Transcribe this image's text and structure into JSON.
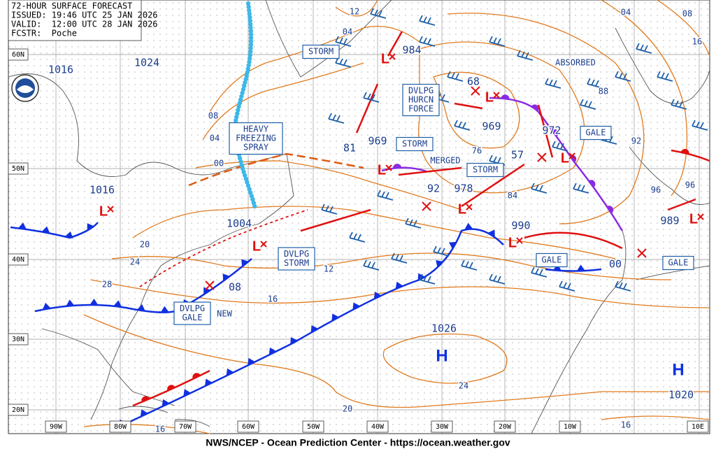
{
  "header": {
    "title": "72-HOUR SURFACE FORECAST",
    "issued": "ISSUED: 19:46 UTC 25 JAN 2026",
    "valid": "VALID:  12:00 UTC 28 JAN 2026",
    "forecaster": "FCSTR:  Poche"
  },
  "latitude_labels": [
    "60N",
    "50N",
    "40N",
    "30N",
    "20N"
  ],
  "longitude_labels": [
    "90W",
    "80W",
    "70W",
    "60W",
    "50W",
    "40W",
    "30W",
    "20W",
    "10W",
    "10E"
  ],
  "pressure_labels": [
    "984",
    "1016",
    "1024",
    "1016",
    "1004",
    "969",
    "969",
    "972",
    "978",
    "990",
    "989",
    "1026",
    "1020",
    "81",
    "92",
    "57",
    "68",
    "00",
    "08"
  ],
  "isobar_labels": [
    "12",
    "04",
    "08",
    "04",
    "00",
    "20",
    "24",
    "28",
    "16",
    "12",
    "20",
    "24",
    "16",
    "16",
    "76",
    "84",
    "88",
    "92",
    "96",
    "96",
    "04",
    "08",
    "16"
  ],
  "boxed_labels": [
    [
      "STORM"
    ],
    [
      "HEAVY",
      "FREEZING",
      "SPRAY"
    ],
    [
      "DVLPG",
      "HURCN",
      "FORCE"
    ],
    [
      "STORM"
    ],
    [
      "STORM"
    ],
    [
      "GALE"
    ],
    [
      "DVLPG",
      "STORM"
    ],
    [
      "DVLPG",
      "GALE"
    ],
    [
      "GALE"
    ],
    [
      "GALE"
    ]
  ],
  "plain_labels": [
    "MERGED",
    "ABSORBED",
    "NEW"
  ],
  "high_centers": [
    "H",
    "H"
  ],
  "low_centers": [
    "L",
    "L",
    "L",
    "L",
    "L",
    "L",
    "L",
    "L",
    "L"
  ],
  "footer": "NWS/NCEP - Ocean Prediction Center - https://ocean.weather.gov"
}
